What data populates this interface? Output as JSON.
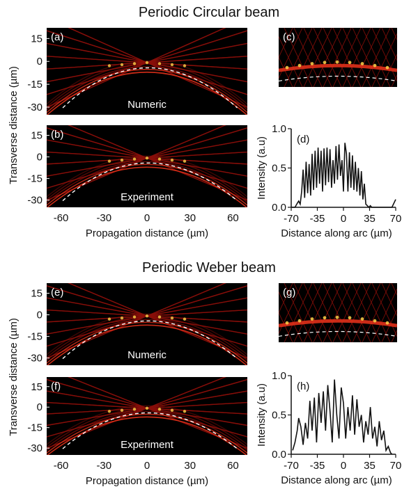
{
  "sections": [
    {
      "title": "Periodic Circular beam"
    },
    {
      "title": "Periodic Weber beam"
    }
  ],
  "colors": {
    "background": "#000000",
    "beam_dim": "#8a0f0a",
    "beam_mid": "#e0301a",
    "beam_hot": "#ffd24a",
    "dashed_guide": "#ffffff",
    "profile_line": "#111111"
  },
  "chart_data": [
    {
      "id": "a",
      "type": "heatmap",
      "panel_label": "(a)",
      "annotation": "Numeric",
      "ylabel": "Transverse distance (µm)",
      "x_range": [
        -70,
        70
      ],
      "y_range": [
        -35,
        22
      ],
      "y_ticks": [
        15,
        0,
        -15,
        -30
      ],
      "guide": {
        "shape": "circular-arc",
        "apex_y": 0
      }
    },
    {
      "id": "b",
      "type": "heatmap",
      "panel_label": "(b)",
      "annotation": "Experiment",
      "xlabel": "Propagation distance (µm)",
      "x_range": [
        -70,
        70
      ],
      "y_range": [
        -35,
        22
      ],
      "x_ticks": [
        -60,
        -30,
        0,
        30,
        60
      ],
      "y_ticks": [
        15,
        0,
        -15,
        -30
      ],
      "guide": {
        "shape": "circular-arc",
        "apex_y": 0
      }
    },
    {
      "id": "c",
      "type": "heatmap",
      "panel_label": "(c)"
    },
    {
      "id": "d",
      "type": "line",
      "panel_label": "(d)",
      "xlabel": "Distance along arc (µm)",
      "ylabel": "Intensity (a.u)",
      "xlim": [
        -70,
        70
      ],
      "ylim": [
        0,
        1.0
      ],
      "x_ticks": [
        -70,
        -35,
        0,
        35,
        70
      ],
      "y_ticks": [
        "0.0",
        "0.5",
        "1.0"
      ],
      "x": [
        -70,
        -65,
        -62,
        -60,
        -58,
        -56,
        -54,
        -52,
        -50,
        -48,
        -46,
        -44,
        -42,
        -40,
        -38,
        -36,
        -34,
        -32,
        -30,
        -28,
        -26,
        -24,
        -22,
        -20,
        -18,
        -16,
        -14,
        -12,
        -10,
        -8,
        -6,
        -4,
        -2,
        0,
        2,
        4,
        6,
        8,
        10,
        12,
        14,
        16,
        18,
        20,
        22,
        24,
        26,
        28,
        30,
        32,
        34,
        36,
        38,
        40,
        42,
        44,
        46,
        48,
        50,
        55,
        60,
        65,
        70
      ],
      "y": [
        0.0,
        0.0,
        0.05,
        0.08,
        0.04,
        0.2,
        0.48,
        0.12,
        0.58,
        0.18,
        0.55,
        0.15,
        0.68,
        0.22,
        0.72,
        0.25,
        0.76,
        0.3,
        0.72,
        0.2,
        0.75,
        0.28,
        0.76,
        0.32,
        0.74,
        0.25,
        0.6,
        0.3,
        0.78,
        0.35,
        0.8,
        0.4,
        0.6,
        0.2,
        0.82,
        0.68,
        0.2,
        0.7,
        0.25,
        0.66,
        0.22,
        0.58,
        0.2,
        0.5,
        0.15,
        0.46,
        0.1,
        0.3,
        0.04,
        0.02,
        0.0,
        0.02,
        0.0,
        0.0,
        0.0,
        0.0,
        0.0,
        0.0,
        0.0,
        0.0,
        0.0,
        0.0,
        0.1
      ]
    },
    {
      "id": "e",
      "type": "heatmap",
      "panel_label": "(e)",
      "annotation": "Numeric",
      "ylabel": "Transverse distance (µm)",
      "x_range": [
        -70,
        70
      ],
      "y_range": [
        -35,
        22
      ],
      "y_ticks": [
        15,
        0,
        -15,
        -30
      ],
      "guide": {
        "shape": "parabolic-arc",
        "apex_y": 0
      }
    },
    {
      "id": "f",
      "type": "heatmap",
      "panel_label": "(f)",
      "annotation": "Experiment",
      "xlabel": "Propagation distance (µm)",
      "x_range": [
        -70,
        70
      ],
      "y_range": [
        -35,
        22
      ],
      "x_ticks": [
        -60,
        -30,
        0,
        30,
        60
      ],
      "y_ticks": [
        15,
        0,
        -15,
        -30
      ],
      "guide": {
        "shape": "parabolic-arc",
        "apex_y": 0
      }
    },
    {
      "id": "g",
      "type": "heatmap",
      "panel_label": "(g)"
    },
    {
      "id": "h",
      "type": "line",
      "panel_label": "(h)",
      "xlabel": "Distance along arc (µm)",
      "ylabel": "Intensity (a.u)",
      "xlim": [
        -70,
        70
      ],
      "ylim": [
        0,
        1.0
      ],
      "x_ticks": [
        -70,
        -35,
        0,
        35,
        70
      ],
      "y_ticks": [
        "0.0",
        "0.5",
        "1.0"
      ],
      "x": [
        -68,
        -65,
        -62,
        -60,
        -57,
        -54,
        -51,
        -48,
        -45,
        -42,
        -39,
        -36,
        -33,
        -30,
        -27,
        -24,
        -21,
        -18,
        -15,
        -12,
        -9,
        -6,
        -3,
        0,
        3,
        6,
        9,
        12,
        15,
        18,
        21,
        24,
        27,
        30,
        33,
        36,
        39,
        42,
        45,
        48,
        51,
        54,
        57,
        60,
        63,
        65
      ],
      "y": [
        0.05,
        0.15,
        0.3,
        0.46,
        0.35,
        0.12,
        0.4,
        0.2,
        0.68,
        0.3,
        0.72,
        0.15,
        0.78,
        0.4,
        0.8,
        0.3,
        0.88,
        0.55,
        0.15,
        0.95,
        0.5,
        0.2,
        0.85,
        0.65,
        0.2,
        0.6,
        0.3,
        0.75,
        0.25,
        0.7,
        0.35,
        0.5,
        0.15,
        0.42,
        0.25,
        0.6,
        0.2,
        0.35,
        0.1,
        0.42,
        0.18,
        0.3,
        0.05,
        0.1,
        0.02,
        0.0
      ]
    }
  ]
}
